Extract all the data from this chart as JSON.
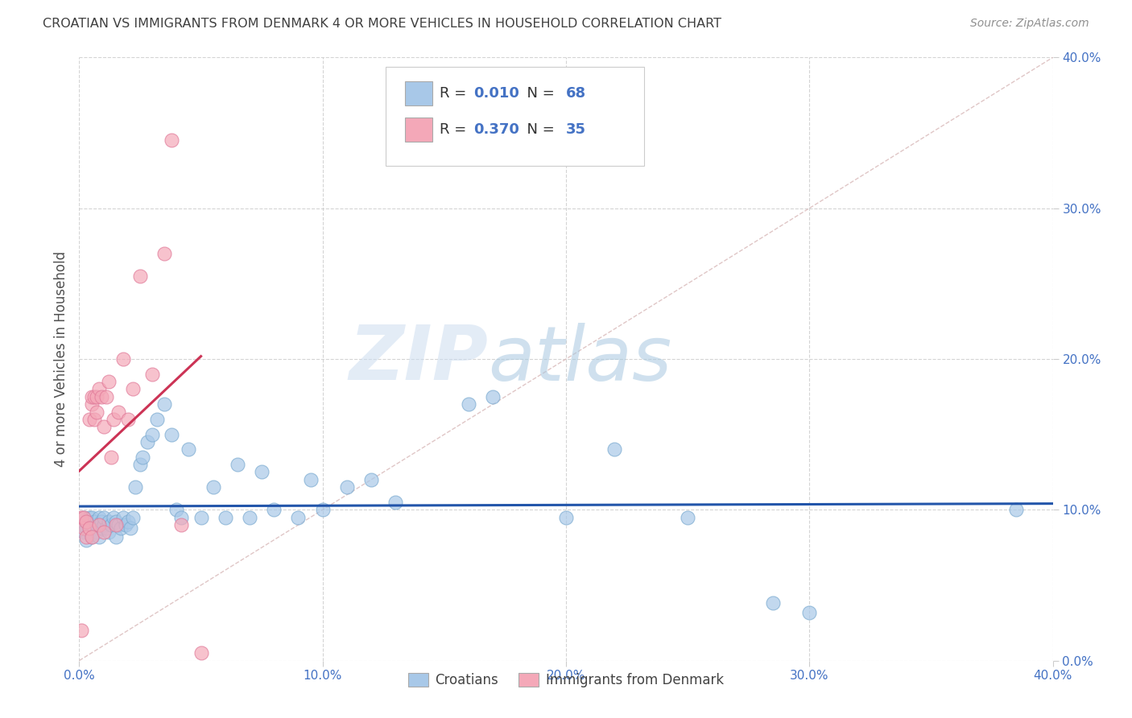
{
  "title": "CROATIAN VS IMMIGRANTS FROM DENMARK 4 OR MORE VEHICLES IN HOUSEHOLD CORRELATION CHART",
  "source": "Source: ZipAtlas.com",
  "ylabel": "4 or more Vehicles in Household",
  "xlim": [
    0.0,
    0.4
  ],
  "ylim": [
    0.0,
    0.4
  ],
  "xticks": [
    0.0,
    0.1,
    0.2,
    0.3,
    0.4
  ],
  "yticks": [
    0.0,
    0.1,
    0.2,
    0.3,
    0.4
  ],
  "xticklabels": [
    "0.0%",
    "10.0%",
    "20.0%",
    "30.0%",
    "40.0%"
  ],
  "yticklabels": [
    "0.0%",
    "10.0%",
    "20.0%",
    "30.0%",
    "40.0%"
  ],
  "watermark_zip": "ZIP",
  "watermark_atlas": "atlas",
  "blue_color": "#a8c8e8",
  "blue_edge_color": "#7aaad0",
  "pink_color": "#f4a8b8",
  "pink_edge_color": "#e07898",
  "blue_line_color": "#2255aa",
  "pink_line_color": "#cc3355",
  "diagonal_color": "#d8d8d8",
  "grid_color": "#d0d0d0",
  "title_color": "#404040",
  "tick_color": "#4472c4",
  "blue_R": "0.010",
  "blue_N": "68",
  "pink_R": "0.370",
  "pink_N": "35",
  "blue_x": [
    0.001,
    0.002,
    0.002,
    0.003,
    0.003,
    0.003,
    0.004,
    0.004,
    0.004,
    0.005,
    0.005,
    0.005,
    0.006,
    0.006,
    0.007,
    0.007,
    0.008,
    0.008,
    0.009,
    0.009,
    0.01,
    0.01,
    0.011,
    0.012,
    0.012,
    0.013,
    0.014,
    0.015,
    0.015,
    0.016,
    0.017,
    0.018,
    0.019,
    0.02,
    0.021,
    0.022,
    0.023,
    0.025,
    0.026,
    0.028,
    0.03,
    0.032,
    0.035,
    0.038,
    0.04,
    0.042,
    0.045,
    0.05,
    0.055,
    0.06,
    0.065,
    0.07,
    0.075,
    0.08,
    0.09,
    0.095,
    0.1,
    0.11,
    0.12,
    0.13,
    0.16,
    0.17,
    0.2,
    0.22,
    0.25,
    0.285,
    0.3,
    0.385
  ],
  "blue_y": [
    0.09,
    0.085,
    0.095,
    0.08,
    0.088,
    0.092,
    0.086,
    0.09,
    0.095,
    0.082,
    0.09,
    0.095,
    0.088,
    0.092,
    0.085,
    0.09,
    0.082,
    0.095,
    0.088,
    0.092,
    0.09,
    0.095,
    0.088,
    0.085,
    0.092,
    0.09,
    0.095,
    0.082,
    0.092,
    0.09,
    0.088,
    0.095,
    0.09,
    0.092,
    0.088,
    0.095,
    0.115,
    0.13,
    0.135,
    0.145,
    0.15,
    0.16,
    0.17,
    0.15,
    0.1,
    0.095,
    0.14,
    0.095,
    0.115,
    0.095,
    0.13,
    0.095,
    0.125,
    0.1,
    0.095,
    0.12,
    0.1,
    0.115,
    0.12,
    0.105,
    0.17,
    0.175,
    0.095,
    0.14,
    0.095,
    0.038,
    0.032,
    0.1
  ],
  "pink_x": [
    0.001,
    0.001,
    0.002,
    0.002,
    0.003,
    0.003,
    0.004,
    0.004,
    0.005,
    0.005,
    0.005,
    0.006,
    0.006,
    0.007,
    0.007,
    0.008,
    0.008,
    0.009,
    0.01,
    0.01,
    0.011,
    0.012,
    0.013,
    0.014,
    0.015,
    0.016,
    0.018,
    0.02,
    0.022,
    0.025,
    0.03,
    0.035,
    0.038,
    0.042,
    0.05
  ],
  "pink_y": [
    0.02,
    0.095,
    0.088,
    0.095,
    0.082,
    0.092,
    0.088,
    0.16,
    0.082,
    0.17,
    0.175,
    0.16,
    0.175,
    0.165,
    0.175,
    0.09,
    0.18,
    0.175,
    0.085,
    0.155,
    0.175,
    0.185,
    0.135,
    0.16,
    0.09,
    0.165,
    0.2,
    0.16,
    0.18,
    0.255,
    0.19,
    0.27,
    0.345,
    0.09,
    0.005
  ]
}
